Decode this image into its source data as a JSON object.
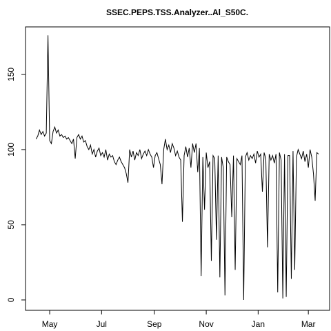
{
  "chart_data": {
    "type": "line",
    "title": "SSEC.PEPS.TSS.Analyzer..Al_S50C.",
    "x": [
      -16,
      -14,
      -12,
      -10,
      -8,
      -6,
      -4,
      -2,
      0,
      2,
      4,
      6,
      8,
      10,
      12,
      14,
      16,
      18,
      20,
      22,
      24,
      26,
      28,
      30,
      32,
      34,
      36,
      38,
      40,
      42,
      44,
      46,
      48,
      50,
      52,
      54,
      56,
      58,
      60,
      62,
      64,
      66,
      68,
      70,
      72,
      74,
      76,
      78,
      80,
      82,
      84,
      86,
      88,
      90,
      92,
      94,
      96,
      98,
      100,
      102,
      104,
      106,
      108,
      110,
      112,
      114,
      116,
      118,
      120,
      122,
      124,
      126,
      128,
      130,
      132,
      134,
      136,
      138,
      140,
      142,
      144,
      146,
      148,
      150,
      152,
      154,
      156,
      158,
      160,
      162,
      164,
      166,
      168,
      170,
      172,
      174,
      176,
      178,
      180,
      182,
      184,
      186,
      188,
      190,
      192,
      194,
      196,
      198,
      200,
      202,
      204,
      206,
      208,
      210,
      212,
      214,
      216,
      218,
      220,
      222,
      224,
      226,
      228,
      230,
      232,
      234,
      236,
      238,
      240,
      242,
      244,
      246,
      248,
      250,
      252,
      254,
      256,
      258,
      260,
      262,
      264,
      266,
      268,
      270,
      272,
      274,
      276,
      278,
      280,
      282,
      284,
      286,
      288,
      290,
      292,
      294,
      296,
      298,
      300,
      302,
      304,
      306,
      308,
      310,
      312,
      314,
      316
    ],
    "series": [
      {
        "color": "#000000",
        "values": [
          107,
          109,
          113,
          110,
          112,
          109,
          111,
          176,
          106,
          104,
          112,
          115,
          111,
          113,
          109,
          110,
          108,
          109,
          107,
          108,
          106,
          104,
          107,
          94,
          108,
          110,
          107,
          109,
          105,
          106,
          102,
          100,
          103,
          97,
          100,
          95,
          99,
          101,
          96,
          98,
          95,
          100,
          93,
          97,
          95,
          96,
          92,
          90,
          93,
          95,
          92,
          90,
          88,
          84,
          78,
          100,
          95,
          99,
          93,
          98,
          96,
          100,
          94,
          97,
          99,
          96,
          100,
          97,
          95,
          88,
          96,
          98,
          94,
          90,
          77,
          100,
          107,
          100,
          103,
          98,
          104,
          101,
          96,
          99,
          95,
          93,
          52,
          96,
          102,
          95,
          101,
          88,
          104,
          98,
          104,
          85,
          101,
          16,
          95,
          60,
          98,
          88,
          92,
          26,
          96,
          94,
          40,
          96,
          15,
          95,
          88,
          3,
          95,
          92,
          90,
          55,
          96,
          20,
          94,
          92,
          90,
          96,
          0,
          95,
          98,
          93,
          96,
          94,
          97,
          91,
          99,
          95,
          97,
          72,
          98,
          94,
          35,
          97,
          93,
          96,
          91,
          97,
          5,
          98,
          93,
          1,
          97,
          2,
          96,
          96,
          14,
          99,
          20,
          95,
          100,
          97,
          94,
          99,
          92,
          97,
          88,
          100,
          95,
          84,
          66,
          98,
          97
        ]
      }
    ],
    "xlim": [
      -28.4,
      329
    ],
    "xticks": [
      {
        "value": 0,
        "label": "May"
      },
      {
        "value": 61,
        "label": "Jul"
      },
      {
        "value": 123,
        "label": "Sep"
      },
      {
        "value": 184,
        "label": "Nov"
      },
      {
        "value": 245,
        "label": "Jan"
      },
      {
        "value": 304,
        "label": "Mar"
      }
    ],
    "ylim": [
      -6.9,
      181.6
    ],
    "yticks": [
      0,
      50,
      100,
      150
    ]
  }
}
